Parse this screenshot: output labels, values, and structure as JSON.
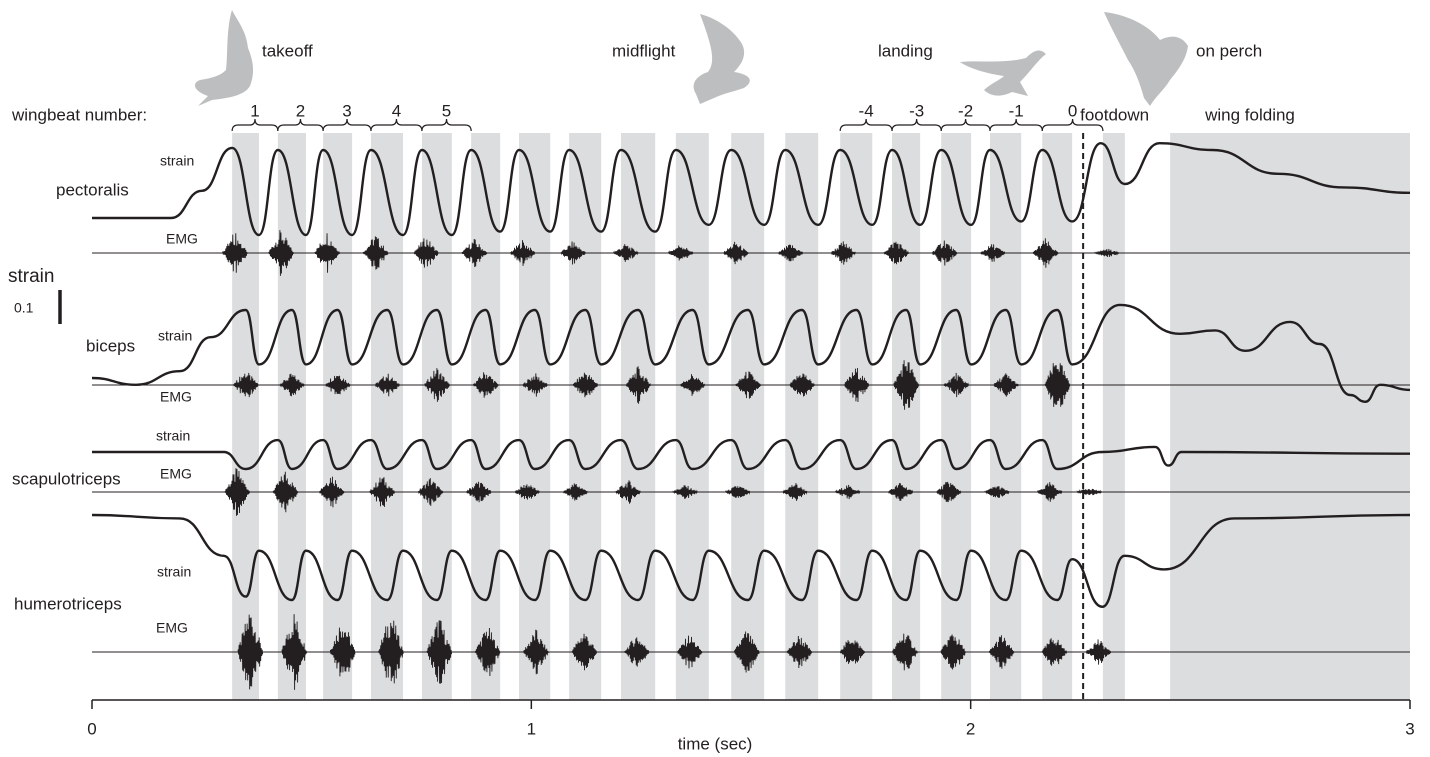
{
  "chart_data": {
    "type": "line",
    "annotations": [
      "takeoff",
      "midflight",
      "landing",
      "on perch"
    ],
    "wingbeat_title": "wingbeat number:",
    "wingbeats": [
      {
        "label": "1",
        "x": [
          0.319,
          0.423
        ]
      },
      {
        "label": "2",
        "x": [
          0.423,
          0.526
        ]
      },
      {
        "label": "3",
        "x": [
          0.526,
          0.635
        ]
      },
      {
        "label": "4",
        "x": [
          0.635,
          0.751
        ]
      },
      {
        "label": "5",
        "x": [
          0.751,
          0.863
        ]
      },
      {
        "label": "-4",
        "x": [
          1.703,
          1.821
        ]
      },
      {
        "label": "-3",
        "x": [
          1.821,
          1.933
        ]
      },
      {
        "label": "-2",
        "x": [
          1.933,
          2.044
        ]
      },
      {
        "label": "-1",
        "x": [
          2.044,
          2.163
        ]
      },
      {
        "label": "0",
        "x": [
          2.163,
          2.301
        ]
      }
    ],
    "footdown": {
      "label": "footdown",
      "x": 2.256
    },
    "wing_folding": {
      "label": "wing folding",
      "x": [
        2.454,
        3
      ]
    },
    "bands": [
      [
        0.319,
        0.38
      ],
      [
        0.423,
        0.487
      ],
      [
        0.526,
        0.592
      ],
      [
        0.635,
        0.708
      ],
      [
        0.751,
        0.819
      ],
      [
        0.863,
        0.929
      ],
      [
        0.972,
        1.043
      ],
      [
        1.086,
        1.159
      ],
      [
        1.204,
        1.282
      ],
      [
        1.329,
        1.404
      ],
      [
        1.455,
        1.53
      ],
      [
        1.578,
        1.653
      ],
      [
        1.703,
        1.776
      ],
      [
        1.821,
        1.885
      ],
      [
        1.933,
        2.001
      ],
      [
        2.044,
        2.115
      ],
      [
        2.163,
        2.231
      ],
      [
        2.301,
        2.351
      ]
    ],
    "scale_bar": {
      "label": "strain",
      "value": 0.1
    },
    "xlabel": "time (sec)",
    "xlim": [
      0,
      3
    ],
    "xticks": [
      0,
      1,
      2,
      3
    ],
    "muscles": [
      {
        "name": "pectoralis",
        "strain": {
          "label": "strain",
          "x": [
            0,
            0.18,
            0.25,
            0.319,
            0.38,
            0.423,
            0.487,
            0.526,
            0.592,
            0.635,
            0.708,
            0.751,
            0.819,
            0.863,
            0.929,
            0.972,
            1.043,
            1.086,
            1.159,
            1.204,
            1.282,
            1.329,
            1.404,
            1.455,
            1.53,
            1.578,
            1.653,
            1.703,
            1.776,
            1.821,
            1.885,
            1.933,
            2.001,
            2.044,
            2.115,
            2.163,
            2.231,
            2.296,
            2.351,
            2.43,
            2.55,
            2.7,
            2.85,
            3
          ],
          "values": [
            0,
            0,
            0.08,
            0.206,
            -0.05,
            0.2,
            -0.05,
            0.2,
            -0.05,
            0.2,
            -0.05,
            0.2,
            -0.05,
            0.2,
            -0.04,
            0.2,
            -0.04,
            0.2,
            -0.04,
            0.2,
            -0.04,
            0.2,
            -0.02,
            0.2,
            -0.02,
            0.2,
            -0.02,
            0.2,
            -0.02,
            0.2,
            -0.02,
            0.2,
            -0.02,
            0.2,
            -0.01,
            0.2,
            -0.01,
            0.22,
            0.1,
            0.22,
            0.2,
            0.13,
            0.09,
            0.074
          ]
        },
        "emg": {
          "label": "EMG",
          "x": [
            0.325,
            0.43,
            0.535,
            0.645,
            0.76,
            0.87,
            0.98,
            1.095,
            1.215,
            1.34,
            1.465,
            1.59,
            1.71,
            1.83,
            1.94,
            2.05,
            2.17,
            2.31
          ],
          "values": [
            0.9,
            1,
            0.9,
            0.8,
            0.7,
            0.6,
            0.55,
            0.5,
            0.4,
            0.4,
            0.5,
            0.4,
            0.5,
            0.6,
            0.6,
            0.4,
            0.6,
            0.2
          ]
        }
      },
      {
        "name": "biceps",
        "strain": {
          "label": "strain",
          "x": [
            0,
            0.1,
            0.2,
            0.27,
            0.35,
            0.38,
            0.455,
            0.487,
            0.559,
            0.592,
            0.672,
            0.708,
            0.785,
            0.819,
            0.896,
            0.929,
            1.008,
            1.043,
            1.123,
            1.159,
            1.243,
            1.282,
            1.367,
            1.404,
            1.493,
            1.53,
            1.616,
            1.653,
            1.74,
            1.776,
            1.853,
            1.885,
            1.967,
            2.001,
            2.08,
            2.115,
            2.197,
            2.231,
            2.34,
            2.477,
            2.556,
            2.625,
            2.727,
            2.795,
            2.864,
            2.898,
            2.932,
            3
          ],
          "values": [
            0,
            -0.02,
            0.02,
            0.12,
            0.2,
            0.04,
            0.2,
            0.04,
            0.2,
            0.04,
            0.2,
            0.04,
            0.2,
            0.04,
            0.2,
            0.04,
            0.2,
            0.04,
            0.2,
            0.04,
            0.2,
            0.04,
            0.2,
            0.04,
            0.2,
            0.04,
            0.2,
            0.04,
            0.2,
            0.04,
            0.2,
            0.04,
            0.2,
            0.04,
            0.2,
            0.04,
            0.2,
            0.04,
            0.215,
            0.13,
            0.14,
            0.08,
            0.165,
            0.1,
            -0.05,
            -0.07,
            -0.02,
            -0.035
          ]
        },
        "emg": {
          "label": "EMG",
          "x": [
            0.35,
            0.455,
            0.559,
            0.672,
            0.785,
            0.896,
            1.008,
            1.123,
            1.243,
            1.367,
            1.493,
            1.616,
            1.74,
            1.853,
            1.967,
            2.08,
            2.197
          ],
          "values": [
            0.5,
            0.4,
            0.5,
            0.4,
            0.6,
            0.5,
            0.4,
            0.5,
            0.6,
            0.4,
            0.5,
            0.5,
            0.6,
            1,
            0.4,
            0.4,
            1
          ]
        }
      },
      {
        "name": "scapulotriceps",
        "strain": {
          "label": "strain",
          "x": [
            0,
            0.3,
            0.35,
            0.423,
            0.455,
            0.526,
            0.559,
            0.635,
            0.672,
            0.751,
            0.785,
            0.863,
            0.896,
            0.972,
            1.008,
            1.086,
            1.123,
            1.204,
            1.243,
            1.329,
            1.367,
            1.455,
            1.493,
            1.578,
            1.616,
            1.703,
            1.74,
            1.821,
            1.853,
            1.933,
            1.967,
            2.044,
            2.08,
            2.163,
            2.197,
            2.3,
            2.42,
            2.45,
            2.48,
            3
          ],
          "values": [
            0,
            0,
            -0.05,
            0.035,
            -0.05,
            0.035,
            -0.05,
            0.035,
            -0.05,
            0.035,
            -0.05,
            0.035,
            -0.05,
            0.035,
            -0.05,
            0.035,
            -0.05,
            0.035,
            -0.05,
            0.035,
            -0.05,
            0.035,
            -0.05,
            0.035,
            -0.05,
            0.035,
            -0.05,
            0.035,
            -0.05,
            0.035,
            -0.05,
            0.035,
            -0.05,
            0.035,
            -0.05,
            0,
            0.015,
            -0.04,
            0,
            -0.005
          ]
        },
        "emg": {
          "label": "EMG",
          "x": [
            0.33,
            0.44,
            0.545,
            0.66,
            0.77,
            0.88,
            0.99,
            1.1,
            1.22,
            1.35,
            1.47,
            1.6,
            1.72,
            1.84,
            1.95,
            2.06,
            2.18,
            2.27
          ],
          "values": [
            1,
            0.9,
            0.8,
            0.7,
            0.6,
            0.5,
            0.4,
            0.4,
            0.5,
            0.3,
            0.3,
            0.4,
            0.3,
            0.4,
            0.5,
            0.3,
            0.4,
            0.2
          ]
        }
      },
      {
        "name": "humerotriceps",
        "strain": {
          "label": "strain",
          "x": [
            0,
            0.2,
            0.3,
            0.35,
            0.38,
            0.455,
            0.487,
            0.559,
            0.592,
            0.672,
            0.708,
            0.785,
            0.819,
            0.896,
            0.929,
            1.008,
            1.043,
            1.123,
            1.159,
            1.243,
            1.282,
            1.367,
            1.404,
            1.493,
            1.53,
            1.616,
            1.653,
            1.74,
            1.776,
            1.853,
            1.885,
            1.967,
            2.001,
            2.08,
            2.115,
            2.197,
            2.231,
            2.3,
            2.35,
            2.44,
            2.6,
            3
          ],
          "values": [
            0,
            -0.01,
            -0.12,
            -0.24,
            -0.105,
            -0.25,
            -0.105,
            -0.25,
            -0.105,
            -0.25,
            -0.105,
            -0.25,
            -0.105,
            -0.25,
            -0.105,
            -0.25,
            -0.105,
            -0.25,
            -0.105,
            -0.25,
            -0.105,
            -0.25,
            -0.105,
            -0.25,
            -0.105,
            -0.25,
            -0.105,
            -0.25,
            -0.105,
            -0.25,
            -0.105,
            -0.25,
            -0.105,
            -0.25,
            -0.105,
            -0.25,
            -0.13,
            -0.27,
            -0.12,
            -0.16,
            -0.01,
            0
          ]
        },
        "emg": {
          "label": "EMG",
          "x": [
            0.36,
            0.46,
            0.57,
            0.68,
            0.79,
            0.9,
            1.01,
            1.12,
            1.24,
            1.36,
            1.49,
            1.61,
            1.73,
            1.85,
            1.96,
            2.07,
            2.19,
            2.29
          ],
          "values": [
            1,
            0.9,
            0.8,
            0.9,
            0.8,
            0.6,
            0.5,
            0.5,
            0.4,
            0.4,
            0.5,
            0.4,
            0.4,
            0.5,
            0.5,
            0.4,
            0.4,
            0.3
          ]
        }
      }
    ]
  }
}
